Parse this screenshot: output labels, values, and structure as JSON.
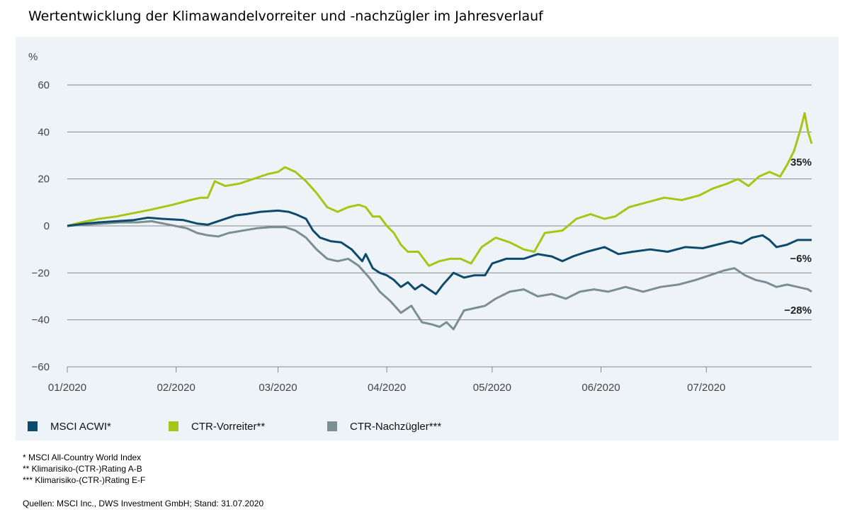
{
  "title": "Wertentwicklung der Klimawandelvorreiter und -nachzügler im Jahresverlauf",
  "footnotes": [
    "* MSCI All-Country World Index",
    "** Klimarisiko-(CTR-)Rating A-B",
    "*** Klimarisiko-(CTR-)Rating E-F"
  ],
  "source": "Quellen: MSCI Inc., DWS Investment GmbH; Stand: 31.07.2020",
  "colors": {
    "panel": "#eef3f8",
    "grid": "#888888",
    "text": "#444444"
  },
  "chart_data": {
    "type": "line",
    "ylabel": "%",
    "ylim": [
      -60,
      60
    ],
    "yticks": [
      60,
      40,
      20,
      0,
      -20,
      -40,
      -60
    ],
    "ytick_labels": [
      "60",
      "40",
      "20",
      "0",
      "−20",
      "−40",
      "−60"
    ],
    "xlim": [
      "2020-01-01",
      "2020-07-31"
    ],
    "xticks": [
      {
        "date": "2020-01-01",
        "label": "01/2020"
      },
      {
        "date": "2020-02-01",
        "label": "02/2020"
      },
      {
        "date": "2020-03-01",
        "label": "03/2020"
      },
      {
        "date": "2020-04-01",
        "label": "04/2020"
      },
      {
        "date": "2020-05-01",
        "label": "05/2020"
      },
      {
        "date": "2020-06-01",
        "label": "06/2020"
      },
      {
        "date": "2020-07-01",
        "label": "07/2020"
      }
    ],
    "grid": true,
    "legend": "bottom",
    "series": [
      {
        "name": "MSCI ACWI*",
        "color": "#0d4a6b",
        "end_label": "−6%",
        "points": [
          [
            "2020-01-01",
            0
          ],
          [
            "2020-01-06",
            1
          ],
          [
            "2020-01-10",
            1.5
          ],
          [
            "2020-01-15",
            2
          ],
          [
            "2020-01-20",
            2.5
          ],
          [
            "2020-01-24",
            3.5
          ],
          [
            "2020-01-28",
            3
          ],
          [
            "2020-02-03",
            2.5
          ],
          [
            "2020-02-07",
            1
          ],
          [
            "2020-02-10",
            0.5
          ],
          [
            "2020-02-14",
            2.5
          ],
          [
            "2020-02-18",
            4.5
          ],
          [
            "2020-02-21",
            5
          ],
          [
            "2020-02-25",
            6
          ],
          [
            "2020-03-01",
            6.5
          ],
          [
            "2020-03-04",
            6
          ],
          [
            "2020-03-06",
            5
          ],
          [
            "2020-03-09",
            3
          ],
          [
            "2020-03-11",
            -2
          ],
          [
            "2020-03-13",
            -5
          ],
          [
            "2020-03-16",
            -6.5
          ],
          [
            "2020-03-19",
            -7
          ],
          [
            "2020-03-22",
            -10
          ],
          [
            "2020-03-25",
            -15
          ],
          [
            "2020-03-26",
            -12
          ],
          [
            "2020-03-28",
            -18
          ],
          [
            "2020-03-30",
            -20
          ],
          [
            "2020-04-01",
            -21
          ],
          [
            "2020-04-03",
            -23
          ],
          [
            "2020-04-05",
            -26
          ],
          [
            "2020-04-07",
            -24
          ],
          [
            "2020-04-09",
            -27
          ],
          [
            "2020-04-11",
            -25
          ],
          [
            "2020-04-13",
            -27
          ],
          [
            "2020-04-15",
            -29
          ],
          [
            "2020-04-17",
            -25
          ],
          [
            "2020-04-20",
            -20
          ],
          [
            "2020-04-23",
            -22
          ],
          [
            "2020-04-26",
            -21
          ],
          [
            "2020-04-29",
            -21
          ],
          [
            "2020-05-01",
            -16
          ],
          [
            "2020-05-05",
            -14
          ],
          [
            "2020-05-10",
            -14
          ],
          [
            "2020-05-14",
            -12
          ],
          [
            "2020-05-18",
            -13
          ],
          [
            "2020-05-21",
            -15
          ],
          [
            "2020-05-24",
            -13
          ],
          [
            "2020-05-28",
            -11
          ],
          [
            "2020-06-02",
            -9
          ],
          [
            "2020-06-06",
            -12
          ],
          [
            "2020-06-10",
            -11
          ],
          [
            "2020-06-15",
            -10
          ],
          [
            "2020-06-20",
            -11
          ],
          [
            "2020-06-25",
            -9
          ],
          [
            "2020-06-30",
            -9.5
          ],
          [
            "2020-07-04",
            -8
          ],
          [
            "2020-07-08",
            -6.5
          ],
          [
            "2020-07-11",
            -7.5
          ],
          [
            "2020-07-14",
            -5
          ],
          [
            "2020-07-17",
            -4
          ],
          [
            "2020-07-19",
            -6
          ],
          [
            "2020-07-21",
            -9
          ],
          [
            "2020-07-24",
            -8
          ],
          [
            "2020-07-27",
            -6
          ],
          [
            "2020-07-31",
            -6
          ]
        ]
      },
      {
        "name": "CTR-Vorreiter**",
        "color": "#a8c414",
        "end_label": "35%",
        "points": [
          [
            "2020-01-01",
            0
          ],
          [
            "2020-01-05",
            1.5
          ],
          [
            "2020-01-10",
            3
          ],
          [
            "2020-01-15",
            4
          ],
          [
            "2020-01-20",
            5.5
          ],
          [
            "2020-01-25",
            7
          ],
          [
            "2020-01-31",
            9
          ],
          [
            "2020-02-05",
            11
          ],
          [
            "2020-02-08",
            12
          ],
          [
            "2020-02-10",
            12
          ],
          [
            "2020-02-12",
            19
          ],
          [
            "2020-02-15",
            17
          ],
          [
            "2020-02-19",
            18
          ],
          [
            "2020-02-23",
            20
          ],
          [
            "2020-02-27",
            22
          ],
          [
            "2020-03-01",
            23
          ],
          [
            "2020-03-03",
            25
          ],
          [
            "2020-03-06",
            23
          ],
          [
            "2020-03-09",
            19
          ],
          [
            "2020-03-12",
            14
          ],
          [
            "2020-03-15",
            8
          ],
          [
            "2020-03-18",
            6
          ],
          [
            "2020-03-21",
            8
          ],
          [
            "2020-03-24",
            9
          ],
          [
            "2020-03-26",
            8
          ],
          [
            "2020-03-28",
            4
          ],
          [
            "2020-03-30",
            4
          ],
          [
            "2020-04-01",
            0
          ],
          [
            "2020-04-03",
            -3
          ],
          [
            "2020-04-05",
            -8
          ],
          [
            "2020-04-07",
            -11
          ],
          [
            "2020-04-10",
            -11
          ],
          [
            "2020-04-13",
            -17
          ],
          [
            "2020-04-16",
            -15
          ],
          [
            "2020-04-19",
            -14
          ],
          [
            "2020-04-22",
            -14
          ],
          [
            "2020-04-25",
            -16
          ],
          [
            "2020-04-28",
            -9
          ],
          [
            "2020-05-02",
            -5
          ],
          [
            "2020-05-06",
            -7
          ],
          [
            "2020-05-10",
            -10
          ],
          [
            "2020-05-13",
            -11
          ],
          [
            "2020-05-16",
            -3
          ],
          [
            "2020-05-21",
            -2
          ],
          [
            "2020-05-25",
            3
          ],
          [
            "2020-05-29",
            5
          ],
          [
            "2020-06-02",
            3
          ],
          [
            "2020-06-05",
            4
          ],
          [
            "2020-06-09",
            8
          ],
          [
            "2020-06-14",
            10
          ],
          [
            "2020-06-19",
            12
          ],
          [
            "2020-06-24",
            11
          ],
          [
            "2020-06-29",
            13
          ],
          [
            "2020-07-03",
            16
          ],
          [
            "2020-07-07",
            18
          ],
          [
            "2020-07-10",
            20
          ],
          [
            "2020-07-13",
            17
          ],
          [
            "2020-07-16",
            21
          ],
          [
            "2020-07-19",
            23
          ],
          [
            "2020-07-22",
            21
          ],
          [
            "2020-07-24",
            26
          ],
          [
            "2020-07-26",
            32
          ],
          [
            "2020-07-27",
            37
          ],
          [
            "2020-07-28",
            42
          ],
          [
            "2020-07-29",
            48
          ],
          [
            "2020-07-30",
            40
          ],
          [
            "2020-07-31",
            35
          ]
        ]
      },
      {
        "name": "CTR-Nachzügler***",
        "color": "#7a8e94",
        "end_label": "−28%",
        "points": [
          [
            "2020-01-01",
            0
          ],
          [
            "2020-01-06",
            0.5
          ],
          [
            "2020-01-11",
            1
          ],
          [
            "2020-01-16",
            1.5
          ],
          [
            "2020-01-21",
            1.5
          ],
          [
            "2020-01-25",
            2
          ],
          [
            "2020-01-30",
            0.5
          ],
          [
            "2020-02-04",
            -1
          ],
          [
            "2020-02-07",
            -3
          ],
          [
            "2020-02-10",
            -4
          ],
          [
            "2020-02-13",
            -4.5
          ],
          [
            "2020-02-16",
            -3
          ],
          [
            "2020-02-20",
            -2
          ],
          [
            "2020-02-24",
            -1
          ],
          [
            "2020-02-28",
            -0.5
          ],
          [
            "2020-03-03",
            -0.5
          ],
          [
            "2020-03-06",
            -2
          ],
          [
            "2020-03-09",
            -5
          ],
          [
            "2020-03-12",
            -10
          ],
          [
            "2020-03-15",
            -14
          ],
          [
            "2020-03-18",
            -15
          ],
          [
            "2020-03-21",
            -14
          ],
          [
            "2020-03-24",
            -17
          ],
          [
            "2020-03-27",
            -22
          ],
          [
            "2020-03-30",
            -28
          ],
          [
            "2020-04-02",
            -32
          ],
          [
            "2020-04-05",
            -37
          ],
          [
            "2020-04-08",
            -34
          ],
          [
            "2020-04-11",
            -41
          ],
          [
            "2020-04-14",
            -42
          ],
          [
            "2020-04-16",
            -43
          ],
          [
            "2020-04-18",
            -41
          ],
          [
            "2020-04-20",
            -44
          ],
          [
            "2020-04-23",
            -36
          ],
          [
            "2020-04-26",
            -35
          ],
          [
            "2020-04-29",
            -34
          ],
          [
            "2020-05-02",
            -31
          ],
          [
            "2020-05-06",
            -28
          ],
          [
            "2020-05-10",
            -27
          ],
          [
            "2020-05-14",
            -30
          ],
          [
            "2020-05-18",
            -29
          ],
          [
            "2020-05-22",
            -31
          ],
          [
            "2020-05-26",
            -28
          ],
          [
            "2020-05-30",
            -27
          ],
          [
            "2020-06-03",
            -28
          ],
          [
            "2020-06-08",
            -26
          ],
          [
            "2020-06-13",
            -28
          ],
          [
            "2020-06-18",
            -26
          ],
          [
            "2020-06-23",
            -25
          ],
          [
            "2020-06-28",
            -23
          ],
          [
            "2020-07-02",
            -21
          ],
          [
            "2020-07-06",
            -19
          ],
          [
            "2020-07-09",
            -18
          ],
          [
            "2020-07-12",
            -21
          ],
          [
            "2020-07-15",
            -23
          ],
          [
            "2020-07-18",
            -24
          ],
          [
            "2020-07-21",
            -26
          ],
          [
            "2020-07-24",
            -25
          ],
          [
            "2020-07-27",
            -26
          ],
          [
            "2020-07-30",
            -27
          ],
          [
            "2020-07-31",
            -28
          ]
        ]
      }
    ]
  }
}
